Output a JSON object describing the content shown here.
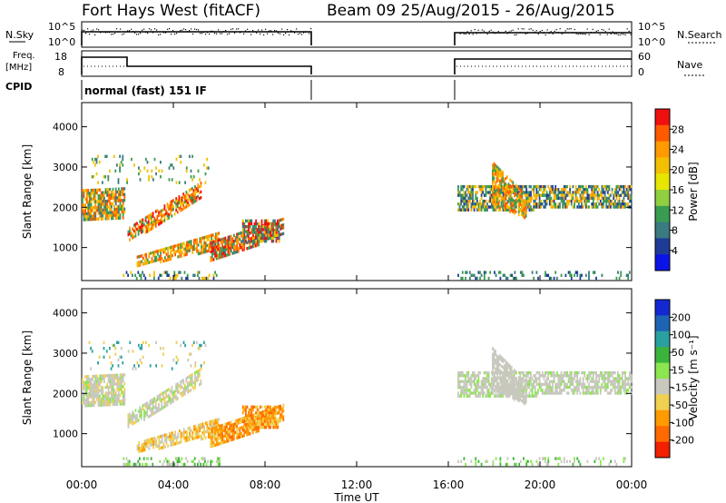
{
  "header": {
    "station": "Fort Hays West (fitACF)",
    "beam_date": "Beam 09  25/Aug/2015 - 26/Aug/2015"
  },
  "aux_panels": {
    "nsky_label": "N.Sky",
    "nsky_ticks": [
      "10^5",
      "10^0"
    ],
    "nsearch_label": "N.Search",
    "freq_label": "Freq.",
    "freq_unit": "[MHz]",
    "freq_ticks": [
      "18",
      "8"
    ],
    "nave_label": "Nave",
    "nave_ticks": [
      "60",
      "0"
    ],
    "cpid_label": "CPID",
    "cpid_value": "normal (fast) 151 IF"
  },
  "chart_data": [
    {
      "type": "heatmap",
      "name": "power",
      "ylabel": "Slant Range [km]",
      "ylim": [
        180,
        4600
      ],
      "yticks": [
        "4000",
        "3000",
        "2000",
        "1000"
      ],
      "ytick_values": [
        4000,
        3000,
        2000,
        1000
      ],
      "colorbar": {
        "label": "Power [dB]",
        "ticks": [
          "28",
          "24",
          "20",
          "16",
          "12",
          "8",
          "4"
        ],
        "colors": [
          "#f01010",
          "#ff5a00",
          "#ff9a00",
          "#f2c000",
          "#e6e600",
          "#90d040",
          "#3a9c50",
          "#3a7a80",
          "#1e3c96",
          "#0a14e6"
        ]
      }
    },
    {
      "type": "heatmap",
      "name": "velocity",
      "ylabel": "Slant Range [km]",
      "ylim": [
        180,
        4600
      ],
      "yticks": [
        "4000",
        "3000",
        "2000",
        "1000"
      ],
      "ytick_values": [
        4000,
        3000,
        2000,
        1000
      ],
      "colorbar": {
        "label": "Velocity [m s⁻¹]",
        "ticks": [
          "200",
          "100",
          "50",
          "15",
          "-15",
          "-50",
          "-100",
          "-200"
        ],
        "colors": [
          "#1428d2",
          "#1e64b4",
          "#2aa0a0",
          "#3cb43c",
          "#8ce650",
          "#c8c8be",
          "#f0d050",
          "#ff9a00",
          "#ff6a00",
          "#f02000"
        ]
      }
    }
  ],
  "time_axis": {
    "xlabel": "Time UT",
    "ticks": [
      "00:00",
      "04:00",
      "08:00",
      "12:00",
      "16:00",
      "20:00",
      "00:00"
    ],
    "tick_hours": [
      0,
      4,
      8,
      12,
      16,
      20,
      24
    ]
  }
}
